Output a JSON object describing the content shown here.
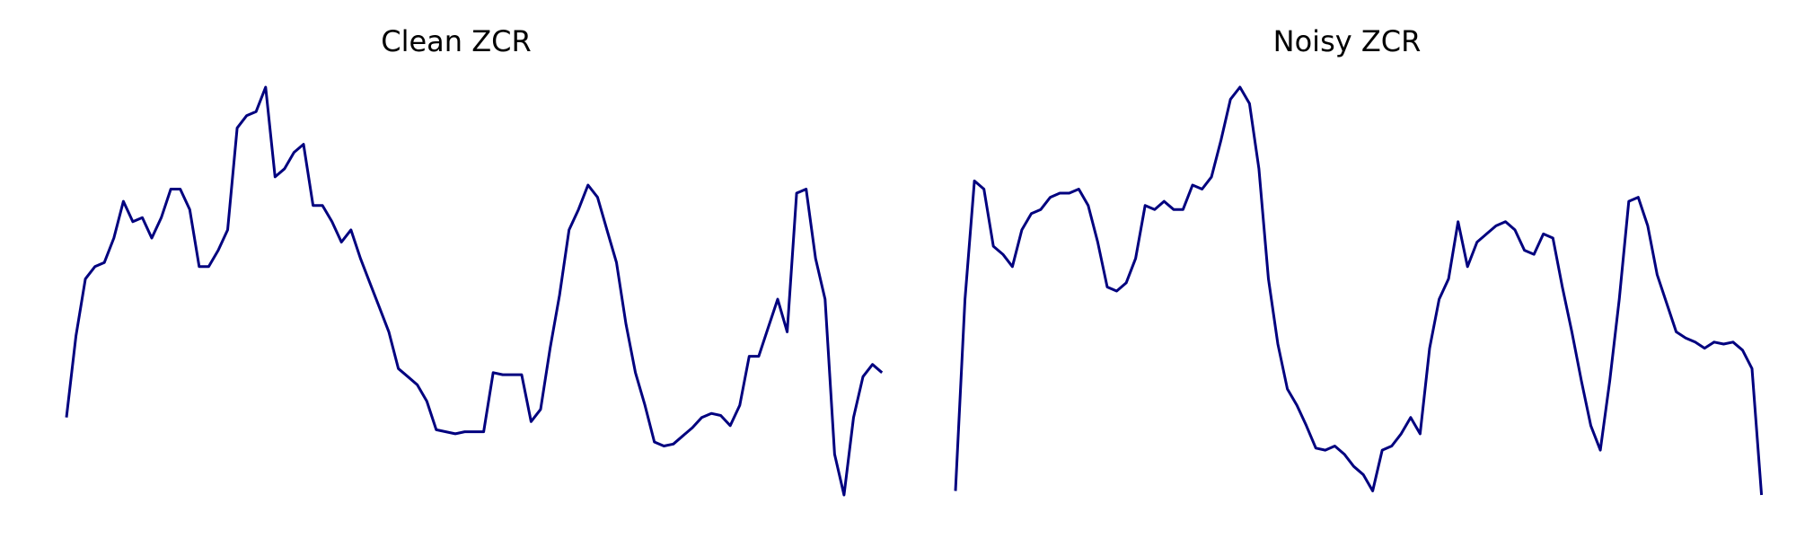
{
  "colors": {
    "line": "#00007f",
    "background": "#ffffff"
  },
  "chart_data": [
    {
      "type": "line",
      "title": "Clean ZCR",
      "axes_visible": false,
      "grid": false,
      "xlim": [
        0,
        83
      ],
      "ylim": [
        0,
        1
      ],
      "series": [
        {
          "values": [
            0.19,
            0.39,
            0.53,
            0.56,
            0.57,
            0.63,
            0.72,
            0.67,
            0.68,
            0.63,
            0.68,
            0.75,
            0.75,
            0.7,
            0.56,
            0.56,
            0.6,
            0.65,
            0.9,
            0.93,
            0.94,
            1.0,
            0.78,
            0.8,
            0.84,
            0.86,
            0.71,
            0.71,
            0.67,
            0.62,
            0.65,
            0.58,
            0.52,
            0.46,
            0.4,
            0.31,
            0.29,
            0.27,
            0.23,
            0.16,
            0.155,
            0.15,
            0.155,
            0.155,
            0.155,
            0.3,
            0.295,
            0.295,
            0.295,
            0.18,
            0.21,
            0.36,
            0.49,
            0.65,
            0.7,
            0.76,
            0.73,
            0.65,
            0.57,
            0.42,
            0.3,
            0.22,
            0.13,
            0.12,
            0.125,
            0.145,
            0.165,
            0.19,
            0.2,
            0.195,
            0.17,
            0.22,
            0.34,
            0.34,
            0.41,
            0.48,
            0.4,
            0.74,
            0.75,
            0.58,
            0.48,
            0.1,
            0.0,
            0.19,
            0.29,
            0.32,
            0.3
          ]
        }
      ]
    },
    {
      "type": "line",
      "title": "Noisy ZCR",
      "axes_visible": false,
      "grid": false,
      "xlim": [
        0,
        83
      ],
      "ylim": [
        0,
        1
      ],
      "series": [
        {
          "values": [
            0.01,
            0.48,
            0.77,
            0.75,
            0.61,
            0.59,
            0.56,
            0.65,
            0.69,
            0.7,
            0.73,
            0.74,
            0.74,
            0.75,
            0.71,
            0.62,
            0.51,
            0.5,
            0.52,
            0.58,
            0.71,
            0.7,
            0.72,
            0.7,
            0.7,
            0.76,
            0.75,
            0.78,
            0.87,
            0.97,
            1.0,
            0.96,
            0.8,
            0.53,
            0.37,
            0.26,
            0.22,
            0.17,
            0.115,
            0.11,
            0.12,
            0.1,
            0.07,
            0.05,
            0.01,
            0.11,
            0.12,
            0.15,
            0.19,
            0.15,
            0.36,
            0.48,
            0.53,
            0.67,
            0.56,
            0.62,
            0.64,
            0.66,
            0.67,
            0.65,
            0.6,
            0.59,
            0.64,
            0.63,
            0.51,
            0.4,
            0.28,
            0.17,
            0.11,
            0.28,
            0.48,
            0.72,
            0.73,
            0.66,
            0.54,
            0.47,
            0.4,
            0.385,
            0.375,
            0.36,
            0.375,
            0.37,
            0.375,
            0.355,
            0.31,
            0.0
          ]
        }
      ]
    }
  ]
}
